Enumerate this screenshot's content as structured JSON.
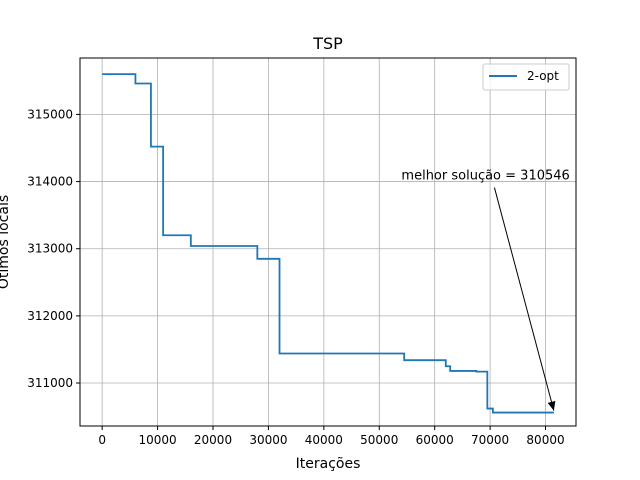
{
  "chart_data": {
    "type": "line",
    "title": "TSP",
    "xlabel": "Iterações",
    "ylabel": "Ótimos locais",
    "xlim": [
      -4000,
      85500
    ],
    "ylim": [
      310360,
      315840
    ],
    "x_ticks": [
      0,
      10000,
      20000,
      30000,
      40000,
      50000,
      60000,
      70000,
      80000
    ],
    "y_ticks": [
      311000,
      312000,
      313000,
      314000,
      315000
    ],
    "grid": true,
    "legend_position": "top-right",
    "series": [
      {
        "name": "2-opt",
        "color": "#1f77b4",
        "step": true,
        "points": [
          [
            0,
            315600
          ],
          [
            6000,
            315460
          ],
          [
            8800,
            314520
          ],
          [
            11000,
            313200
          ],
          [
            16000,
            313040
          ],
          [
            28000,
            312850
          ],
          [
            32000,
            311440
          ],
          [
            54500,
            311340
          ],
          [
            62000,
            311250
          ],
          [
            62800,
            311180
          ],
          [
            67500,
            311170
          ],
          [
            69500,
            310620
          ],
          [
            70500,
            310560
          ],
          [
            81500,
            310560
          ]
        ]
      }
    ],
    "annotation": {
      "text": "melhor solução = 310546",
      "text_x": 54000,
      "text_y": 314000,
      "arrow_x": 81500,
      "arrow_y": 310560
    }
  }
}
